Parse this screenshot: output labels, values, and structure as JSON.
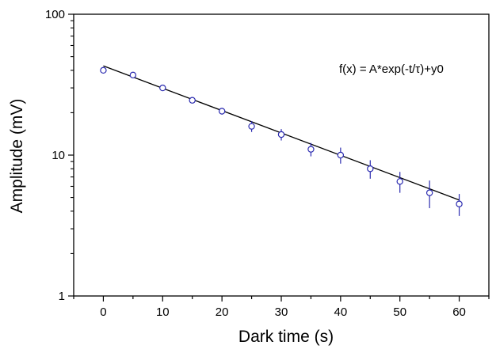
{
  "chart_data": {
    "type": "scatter",
    "title": "",
    "xlabel": "Dark time (s)",
    "ylabel": "Amplitude (mV)",
    "xlim": [
      -5,
      65
    ],
    "ylim": [
      1,
      100
    ],
    "yscale": "log",
    "grid": false,
    "x_ticks": [
      0,
      10,
      20,
      30,
      40,
      50,
      60
    ],
    "y_ticks": [
      1,
      10,
      100
    ],
    "series": [
      {
        "marker": "open-circle",
        "color": "#2b2bb0",
        "x": [
          0,
          5,
          10,
          15,
          20,
          25,
          30,
          35,
          40,
          45,
          50,
          55,
          60
        ],
        "y": [
          40,
          37,
          30,
          24.5,
          20.5,
          16,
          14,
          11,
          10,
          8,
          6.5,
          5.4,
          4.5
        ],
        "err": [
          2.0,
          1.8,
          1.5,
          1.2,
          1.1,
          1.4,
          1.3,
          1.2,
          1.3,
          1.2,
          1.1,
          1.2,
          0.8
        ]
      }
    ],
    "fit_line": {
      "color": "#000000",
      "x": [
        0,
        60
      ],
      "y": [
        43,
        4.8
      ]
    },
    "annotation": "f(x) = A*exp(-t/τ)+y0"
  }
}
